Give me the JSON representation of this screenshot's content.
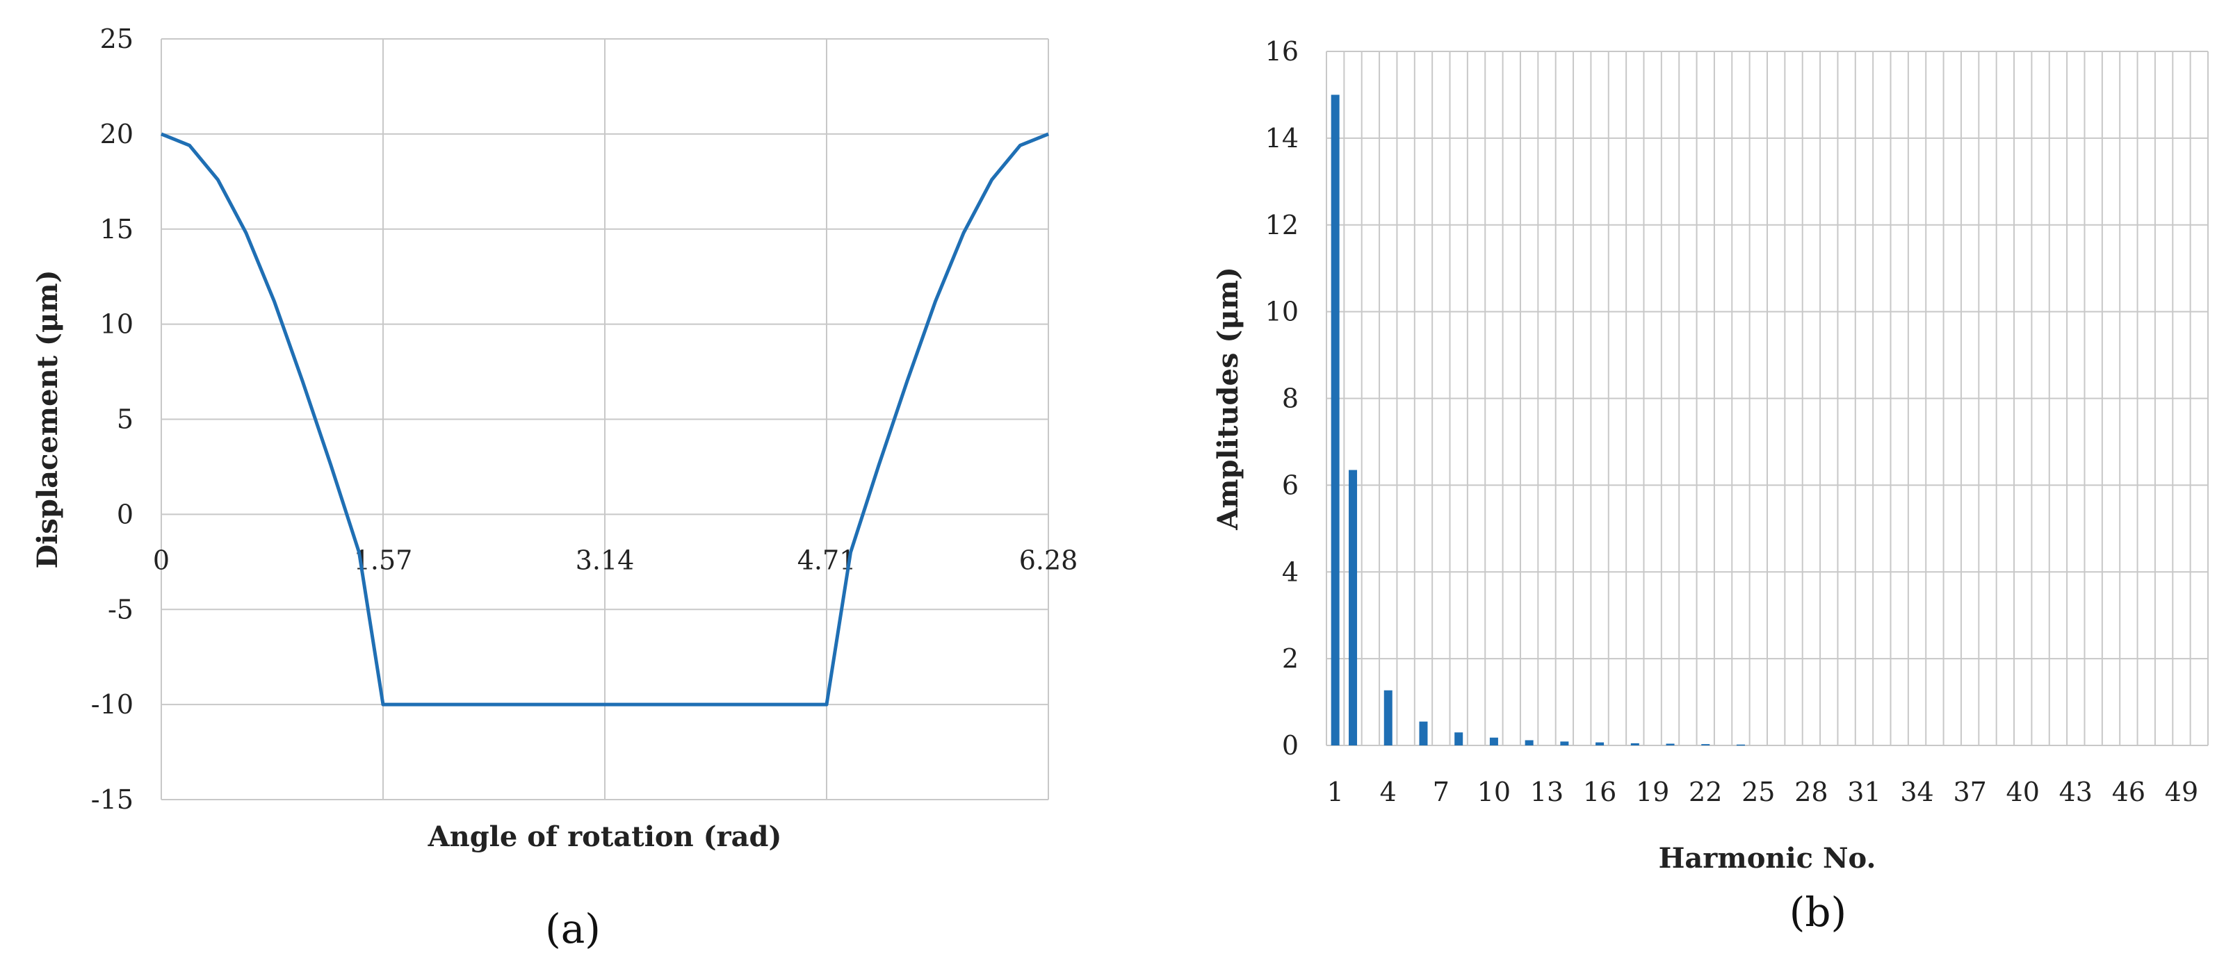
{
  "chart_data": [
    {
      "type": "line",
      "panel_label": "(a)",
      "xlabel": "Angle of rotation (rad)",
      "ylabel": "Displacement (μm)",
      "xlim": [
        0,
        6.28
      ],
      "ylim": [
        -15,
        25
      ],
      "x_ticks": [
        0,
        1.57,
        3.14,
        4.71,
        6.28
      ],
      "x_tick_labels": [
        "0",
        "1.57",
        "3.14",
        "4.71",
        "6.28"
      ],
      "y_ticks": [
        -15,
        -10,
        -5,
        0,
        5,
        10,
        15,
        20,
        25
      ],
      "y_tick_labels": [
        "-15",
        "-10",
        "-5",
        "0",
        "5",
        "10",
        "15",
        "20",
        "25"
      ],
      "grid": true,
      "color": "#1f6fb4",
      "series": [
        {
          "x": [
            0,
            0.2,
            0.4,
            0.6,
            0.8,
            1.0,
            1.2,
            1.4,
            1.57,
            4.71,
            4.88,
            5.08,
            5.28,
            5.48,
            5.68,
            5.88,
            6.08,
            6.28
          ],
          "values": [
            20,
            19.4,
            17.6,
            14.8,
            11.2,
            7.0,
            2.6,
            -2.0,
            -10,
            -10,
            -2.0,
            2.6,
            7.0,
            11.2,
            14.8,
            17.6,
            19.4,
            20
          ]
        }
      ]
    },
    {
      "type": "bar",
      "panel_label": "(b)",
      "xlabel": "Harmonic No.",
      "ylabel": "Amplitudes (μm)",
      "ylim": [
        0,
        16
      ],
      "y_ticks": [
        0,
        2,
        4,
        6,
        8,
        10,
        12,
        14,
        16
      ],
      "y_tick_labels": [
        "0",
        "2",
        "4",
        "6",
        "8",
        "10",
        "12",
        "14",
        "16"
      ],
      "x_tick_labels": [
        "1",
        "4",
        "7",
        "10",
        "13",
        "16",
        "19",
        "22",
        "25",
        "28",
        "31",
        "34",
        "37",
        "40",
        "43",
        "46",
        "49"
      ],
      "grid": true,
      "color": "#1f6fb4",
      "categories": [
        1,
        2,
        3,
        4,
        5,
        6,
        7,
        8,
        9,
        10,
        11,
        12,
        13,
        14,
        15,
        16,
        17,
        18,
        19,
        20,
        21,
        22,
        23,
        24,
        25,
        26,
        27,
        28,
        29,
        30,
        31,
        32,
        33,
        34,
        35,
        36,
        37,
        38,
        39,
        40,
        41,
        42,
        43,
        44,
        45,
        46,
        47,
        48,
        49,
        50
      ],
      "values": [
        15.0,
        6.35,
        0,
        1.27,
        0,
        0.55,
        0,
        0.3,
        0,
        0.18,
        0,
        0.12,
        0,
        0.09,
        0,
        0.07,
        0,
        0.05,
        0,
        0.04,
        0,
        0.03,
        0,
        0.02,
        0,
        0,
        0,
        0,
        0,
        0,
        0,
        0,
        0,
        0,
        0,
        0,
        0,
        0,
        0,
        0,
        0,
        0,
        0,
        0,
        0,
        0,
        0,
        0,
        0,
        0
      ]
    }
  ]
}
